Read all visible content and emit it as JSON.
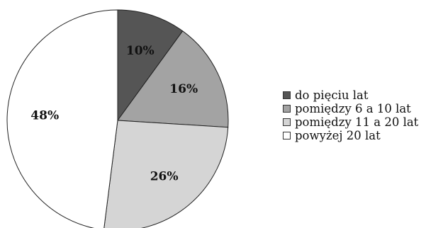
{
  "chart_data": {
    "type": "pie",
    "title": "",
    "categories": [
      "do pięciu lat",
      "pomiędzy 6 a 10 lat",
      "pomiędzy 11 a 20 lat",
      "powyżej 20 lat"
    ],
    "values": [
      10,
      16,
      26,
      48
    ],
    "value_labels": [
      "10%",
      "16%",
      "26%",
      "48%"
    ],
    "colors": [
      "#555555",
      "#a3a3a3",
      "#d5d5d5",
      "#ffffff"
    ],
    "start": "12 o'clock",
    "direction": "clockwise",
    "legend_position": "right"
  }
}
